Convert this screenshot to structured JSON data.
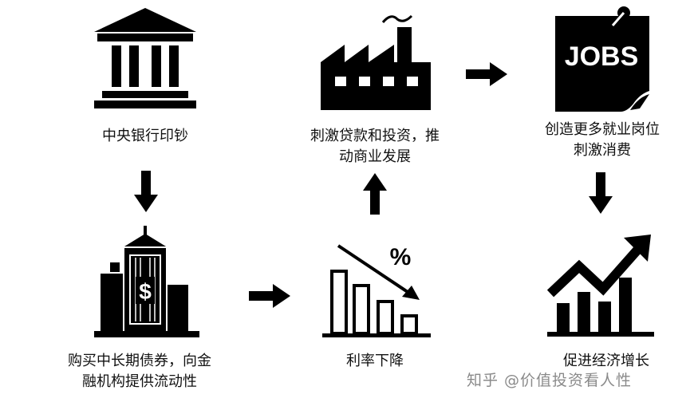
{
  "nodes": {
    "central_bank": {
      "label": "中央银行印钞",
      "icon": "bank-icon"
    },
    "buy_bonds": {
      "label": "购买中长期债券，向金\n融机构提供流动性",
      "icon": "city-dollar-building-icon"
    },
    "rate_down": {
      "label": "利率下降",
      "icon": "declining-bar-chart-percent-icon"
    },
    "stimulate_loans": {
      "label": "刺激贷款和投资，推\n动商业发展",
      "icon": "factory-icon"
    },
    "jobs": {
      "label": "创造更多就业岗位\n刺激消费",
      "icon": "jobs-note-icon",
      "icon_text": "JOBS"
    },
    "growth": {
      "label": "促进经济增长",
      "icon": "rising-bar-chart-icon"
    }
  },
  "watermark": "知乎 @价值投资看人性"
}
